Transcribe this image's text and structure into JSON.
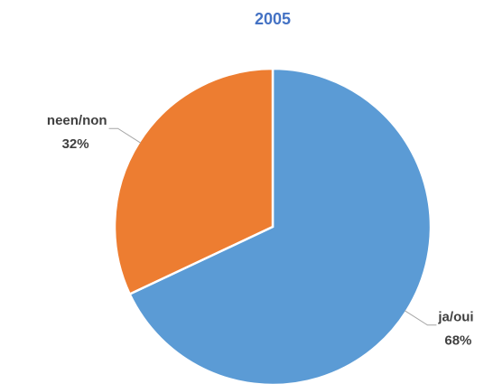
{
  "chart_data": {
    "type": "pie",
    "title": "2005",
    "categories": [
      "ja/oui",
      "neen/non"
    ],
    "values": [
      68,
      32
    ],
    "value_labels": [
      "68%",
      "32%"
    ],
    "colors": [
      "#5b9bd5",
      "#ed7d31"
    ]
  }
}
